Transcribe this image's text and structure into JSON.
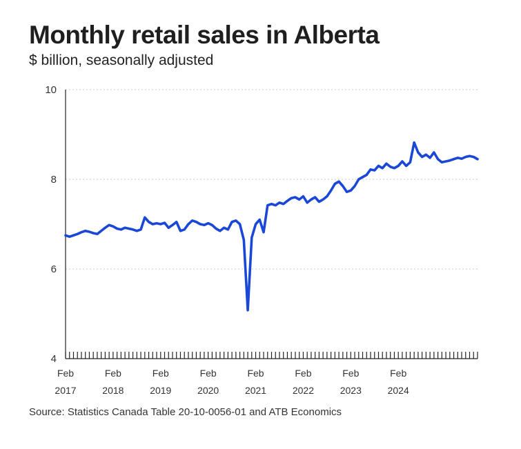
{
  "header": {
    "title": "Monthly retail sales in Alberta",
    "subtitle": "$ billion, seasonally adjusted"
  },
  "footer": {
    "source": "Source: Statistics Canada Table 20-10-0056-01 and ATB Economics"
  },
  "colors": {
    "series": "#1a47d6",
    "grid": "#c8c8c8",
    "axis": "#222222"
  },
  "chart_data": {
    "type": "line",
    "title": "Monthly retail sales in Alberta",
    "subtitle": "$ billion, seasonally adjusted",
    "xlabel": "",
    "ylabel": "",
    "x_start": "2017-02",
    "x_end": "2024-02",
    "xlim": [
      "2017-02",
      "2024-02"
    ],
    "ylim": [
      4,
      10
    ],
    "yticks": [
      4,
      6,
      8,
      10
    ],
    "grid": true,
    "legend": "none",
    "xticks": [
      {
        "top": "Feb",
        "bottom": "2017"
      },
      {
        "top": "Feb",
        "bottom": "2018"
      },
      {
        "top": "Feb",
        "bottom": "2019"
      },
      {
        "top": "Feb",
        "bottom": "2020"
      },
      {
        "top": "Feb",
        "bottom": "2021"
      },
      {
        "top": "Feb",
        "bottom": "2022"
      },
      {
        "top": "Feb",
        "bottom": "2023"
      },
      {
        "top": "Feb",
        "bottom": "2024"
      }
    ],
    "series": [
      {
        "values": [
          6.75,
          6.72,
          6.75,
          6.78,
          6.82,
          6.85,
          6.83,
          6.8,
          6.78,
          6.85,
          6.92,
          6.98,
          6.95,
          6.9,
          6.88,
          6.92,
          6.9,
          6.88,
          6.85,
          6.88,
          7.15,
          7.05,
          7.0,
          7.02,
          7.0,
          7.03,
          6.92,
          6.98,
          7.05,
          6.85,
          6.88,
          7.0,
          7.08,
          7.05,
          7.0,
          6.98,
          7.02,
          6.98,
          6.9,
          6.85,
          6.92,
          6.88,
          7.05,
          7.08,
          7.0,
          6.65,
          5.08,
          6.7,
          7.0,
          7.1,
          6.82,
          7.42,
          7.45,
          7.42,
          7.48,
          7.45,
          7.52,
          7.58,
          7.6,
          7.55,
          7.62,
          7.48,
          7.55,
          7.6,
          7.5,
          7.55,
          7.62,
          7.75,
          7.9,
          7.95,
          7.85,
          7.72,
          7.75,
          7.85,
          8.0,
          8.05,
          8.1,
          8.22,
          8.2,
          8.3,
          8.25,
          8.35,
          8.28,
          8.25,
          8.3,
          8.4,
          8.3,
          8.38,
          8.82,
          8.6,
          8.5,
          8.55,
          8.48,
          8.6,
          8.45,
          8.38,
          8.4,
          8.42,
          8.45,
          8.48,
          8.46,
          8.5,
          8.52,
          8.5,
          8.45
        ]
      }
    ]
  }
}
